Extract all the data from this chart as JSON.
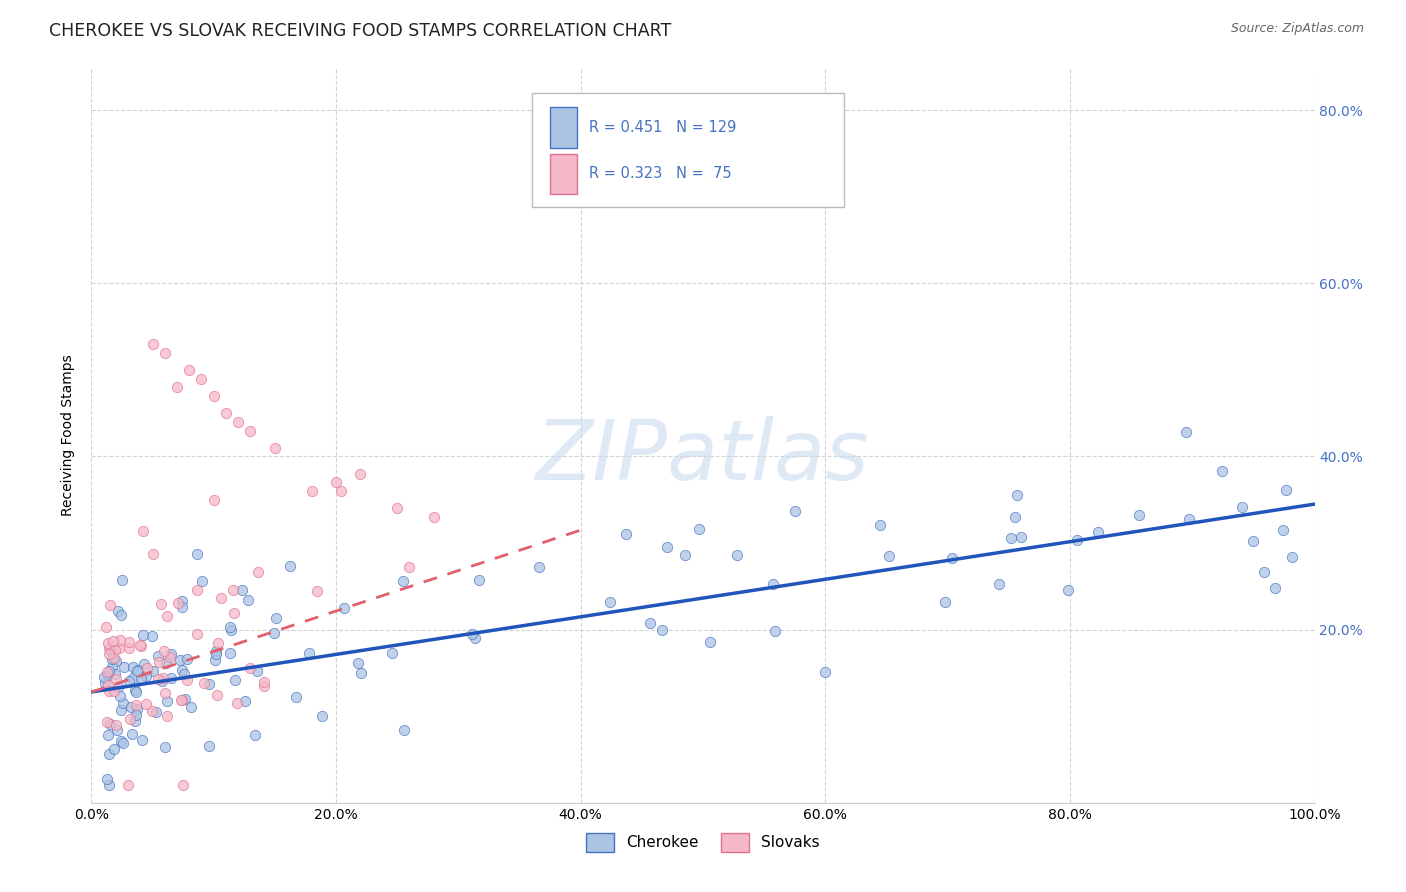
{
  "title": "CHEROKEE VS SLOVAK RECEIVING FOOD STAMPS CORRELATION CHART",
  "source": "Source: ZipAtlas.com",
  "ylabel": "Receiving Food Stamps",
  "xlim": [
    0,
    1.0
  ],
  "ylim": [
    0,
    0.85
  ],
  "xtick_vals": [
    0.0,
    0.2,
    0.4,
    0.6,
    0.8,
    1.0
  ],
  "ytick_vals": [
    0.0,
    0.2,
    0.4,
    0.6,
    0.8
  ],
  "ytick_labels": [
    "",
    "20.0%",
    "40.0%",
    "60.0%",
    "80.0%"
  ],
  "xtick_labels": [
    "0.0%",
    "20.0%",
    "40.0%",
    "60.0%",
    "80.0%",
    "100.0%"
  ],
  "cherokee_color": "#aac4e2",
  "slovak_color": "#f5b8c8",
  "cherokee_edge_color": "#4472c4",
  "slovak_edge_color": "#e07090",
  "cherokee_line_color": "#2255bb",
  "slovak_line_color": "#e06070",
  "cherokee_R": 0.451,
  "cherokee_N": 129,
  "slovak_R": 0.323,
  "slovak_N": 75,
  "legend_text_color": "#333333",
  "legend_num_color": "#4472c4",
  "watermark_text": "ZIPatlas",
  "watermark_color": "#c5d8ee",
  "background_color": "#ffffff",
  "grid_color": "#d0d0d0",
  "title_fontsize": 12.5,
  "axis_label_fontsize": 10,
  "tick_fontsize": 10,
  "right_tick_color": "#4472c4",
  "cherokee_trend_start_x": 0.0,
  "cherokee_trend_end_x": 1.0,
  "cherokee_trend_start_y": 0.128,
  "cherokee_trend_end_y": 0.345,
  "slovak_trend_start_x": 0.0,
  "slovak_trend_end_x": 0.4,
  "slovak_trend_start_y": 0.128,
  "slovak_trend_end_y": 0.315
}
